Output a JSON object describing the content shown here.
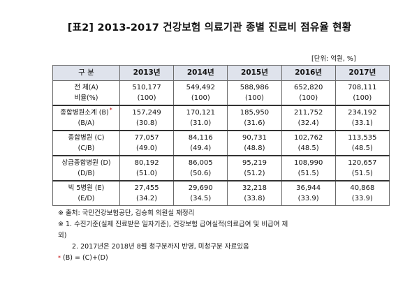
{
  "title": "[표2] 2013-2017 건강보험 의료기관 종별 진료비 점유율 현황",
  "unit": "[단위: 억원, %]",
  "table": {
    "header": [
      "구  분",
      "2013년",
      "2014년",
      "2015년",
      "2016년",
      "2017년"
    ],
    "rows": [
      {
        "label_top": "전  체(A)",
        "label_bottom": "비율(%)",
        "star": "",
        "values": [
          "510,177",
          "549,492",
          "588,986",
          "652,820",
          "708,111"
        ],
        "ratios": [
          "(100)",
          "(100)",
          "(100)",
          "(100)",
          "(100)"
        ]
      },
      {
        "label_top": "종합병원소계 (B)",
        "label_bottom": "(B/A)",
        "star": "*",
        "values": [
          "157,249",
          "170,121",
          "185,950",
          "211,752",
          "234,192"
        ],
        "ratios": [
          "(30.8)",
          "(31.0)",
          "(31.6)",
          "(32.4)",
          "(33.1)"
        ]
      },
      {
        "label_top": "종합병원 (C)",
        "label_bottom": "(C/B)",
        "star": "",
        "values": [
          "77,057",
          "84,116",
          "90,731",
          "102,762",
          "113,535"
        ],
        "ratios": [
          "(49.0)",
          "(49.4)",
          "(48.8)",
          "(48.5)",
          "(48.5)"
        ]
      },
      {
        "label_top": "상급종합병원 (D)",
        "label_bottom": "(D/B)",
        "star": "",
        "values": [
          "80,192",
          "86,005",
          "95,219",
          "108,990",
          "120,657"
        ],
        "ratios": [
          "(51.0)",
          "(50.6)",
          "(51.2)",
          "(51.5)",
          "(51.5)"
        ]
      },
      {
        "label_top": "빅 5병원 (E)",
        "label_bottom": "(E/D)",
        "star": "",
        "values": [
          "27,455",
          "29,690",
          "32,218",
          "36,944",
          "40,868"
        ],
        "ratios": [
          "(34.2)",
          "(34.5)",
          "(33.8)",
          "(33.9)",
          "(33.9)"
        ]
      }
    ]
  },
  "notes": {
    "source": "※ 출처: 국민건강보험공단, 김승희 의원실 재정리",
    "note1_a": "※ 1. 수진기준(실제 진료받은 일자기준), 건강보험 급여실적(의료급여 및 비급여 제",
    "note1_b": "외)",
    "note2": "2. 2017년은 2018년 8월 청구분까지 반영, 미청구분 자료있음",
    "footnote_star": "*",
    "footnote_text": "(B) = (C)+(D)"
  }
}
